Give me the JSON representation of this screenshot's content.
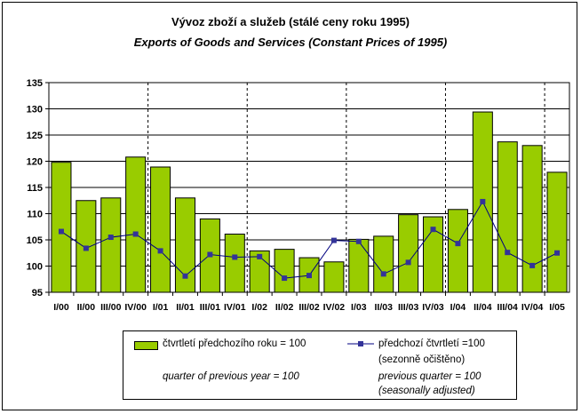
{
  "titles": {
    "line1": "Vývoz zboží a služeb (stálé ceny roku 1995)",
    "line2": "Exports of Goods and Services (Constant Prices of 1995)"
  },
  "legend": {
    "bar_label_cz": "čtvrtletí předchozího roku = 100",
    "bar_label_en": "quarter of previous year = 100",
    "line_label_cz_1": "předchozí čtvrtletí =100",
    "line_label_cz_2": "(sezonně očištěno)",
    "line_label_en_1": "previous quarter = 100",
    "line_label_en_2": "(seasonally adjusted)"
  },
  "colors": {
    "bar_fill": "#99cc00",
    "bar_stroke": "#000000",
    "line": "#000080",
    "marker": "#333399",
    "grid": "#000000"
  },
  "chart_data": {
    "type": "bar",
    "title": "Vývoz zboží a služeb (stálé ceny roku 1995) / Exports of Goods and Services (Constant Prices of 1995)",
    "xlabel": "",
    "ylabel": "",
    "ylim": [
      95,
      135
    ],
    "yticks": [
      95,
      100,
      105,
      110,
      115,
      120,
      125,
      130,
      135
    ],
    "grid": true,
    "legend_position": "bottom",
    "categories": [
      "I/00",
      "II/00",
      "III/00",
      "IV/00",
      "I/01",
      "II/01",
      "III/01",
      "IV/01",
      "I/02",
      "II/02",
      "III/02",
      "IV/02",
      "I/03",
      "II/03",
      "III/03",
      "IV/03",
      "I/04",
      "II/04",
      "III/04",
      "IV/04",
      "I/05"
    ],
    "series": [
      {
        "name": "čtvrtletí předchozího roku = 100",
        "kind": "bar",
        "values": [
          119.8,
          112.5,
          113.0,
          120.8,
          118.9,
          113.0,
          109.0,
          106.1,
          102.9,
          103.2,
          101.6,
          100.8,
          105.1,
          105.7,
          109.8,
          109.4,
          110.8,
          129.4,
          123.7,
          123.0,
          117.9
        ]
      },
      {
        "name": "předchozí čtvrtletí =100 (sezonně očištěno)",
        "kind": "line",
        "values": [
          106.6,
          103.4,
          105.5,
          106.1,
          102.9,
          98.1,
          102.2,
          101.7,
          101.8,
          97.7,
          98.2,
          104.9,
          104.7,
          98.5,
          100.7,
          107.0,
          104.3,
          112.3,
          102.6,
          100.1,
          102.5
        ]
      }
    ]
  }
}
